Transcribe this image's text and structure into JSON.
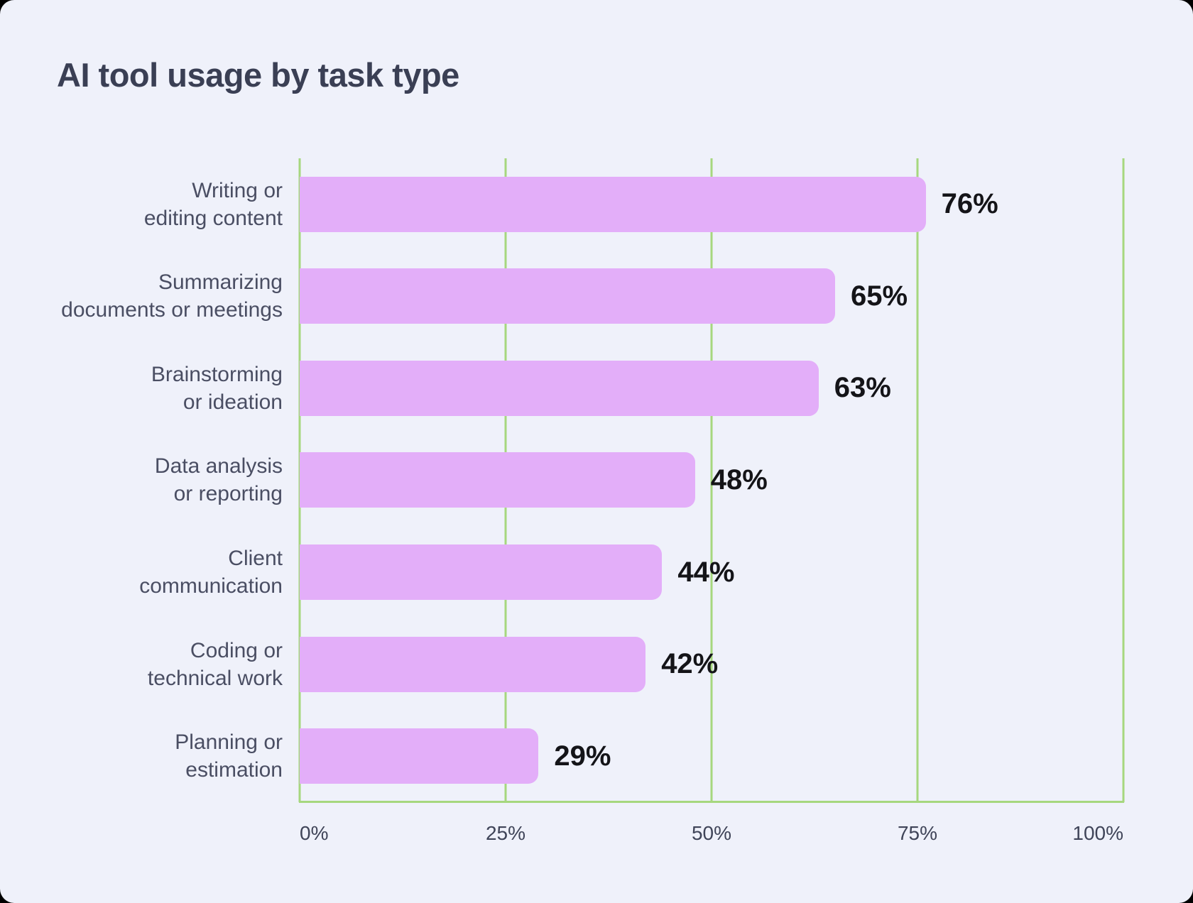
{
  "page": {
    "title": "AI tool usage by task type"
  },
  "chart_data": {
    "type": "bar",
    "orientation": "horizontal",
    "title": "AI tool usage by task type",
    "categories": [
      "Writing or editing content",
      "Summarizing documents or meetings",
      "Brainstorming or ideation",
      "Data analysis or reporting",
      "Client communication",
      "Coding or technical work",
      "Planning or estimation"
    ],
    "categories_display": [
      "Writing or\nediting content",
      "Summarizing\ndocuments or meetings",
      "Brainstorming\nor ideation",
      "Data analysis\nor reporting",
      "Client\ncommunication",
      "Coding or\ntechnical work",
      "Planning or\nestimation"
    ],
    "values": [
      76,
      65,
      63,
      48,
      44,
      42,
      29
    ],
    "value_labels": [
      "76%",
      "65%",
      "63%",
      "48%",
      "44%",
      "42%",
      "29%"
    ],
    "x_ticks": [
      "0%",
      "25%",
      "50%",
      "75%",
      "100%"
    ],
    "xlim": [
      0,
      100
    ],
    "ylabel": "",
    "xlabel": "",
    "grid": "vertical-gridlines-on",
    "legend": "none",
    "colors": {
      "background": "#EFF1FA",
      "bar": "#E3AEF9",
      "grid": "#A6D77E",
      "title": "#3A3F54",
      "category": "#4A4E63",
      "value": "#141418",
      "tick": "#3F4458"
    }
  }
}
